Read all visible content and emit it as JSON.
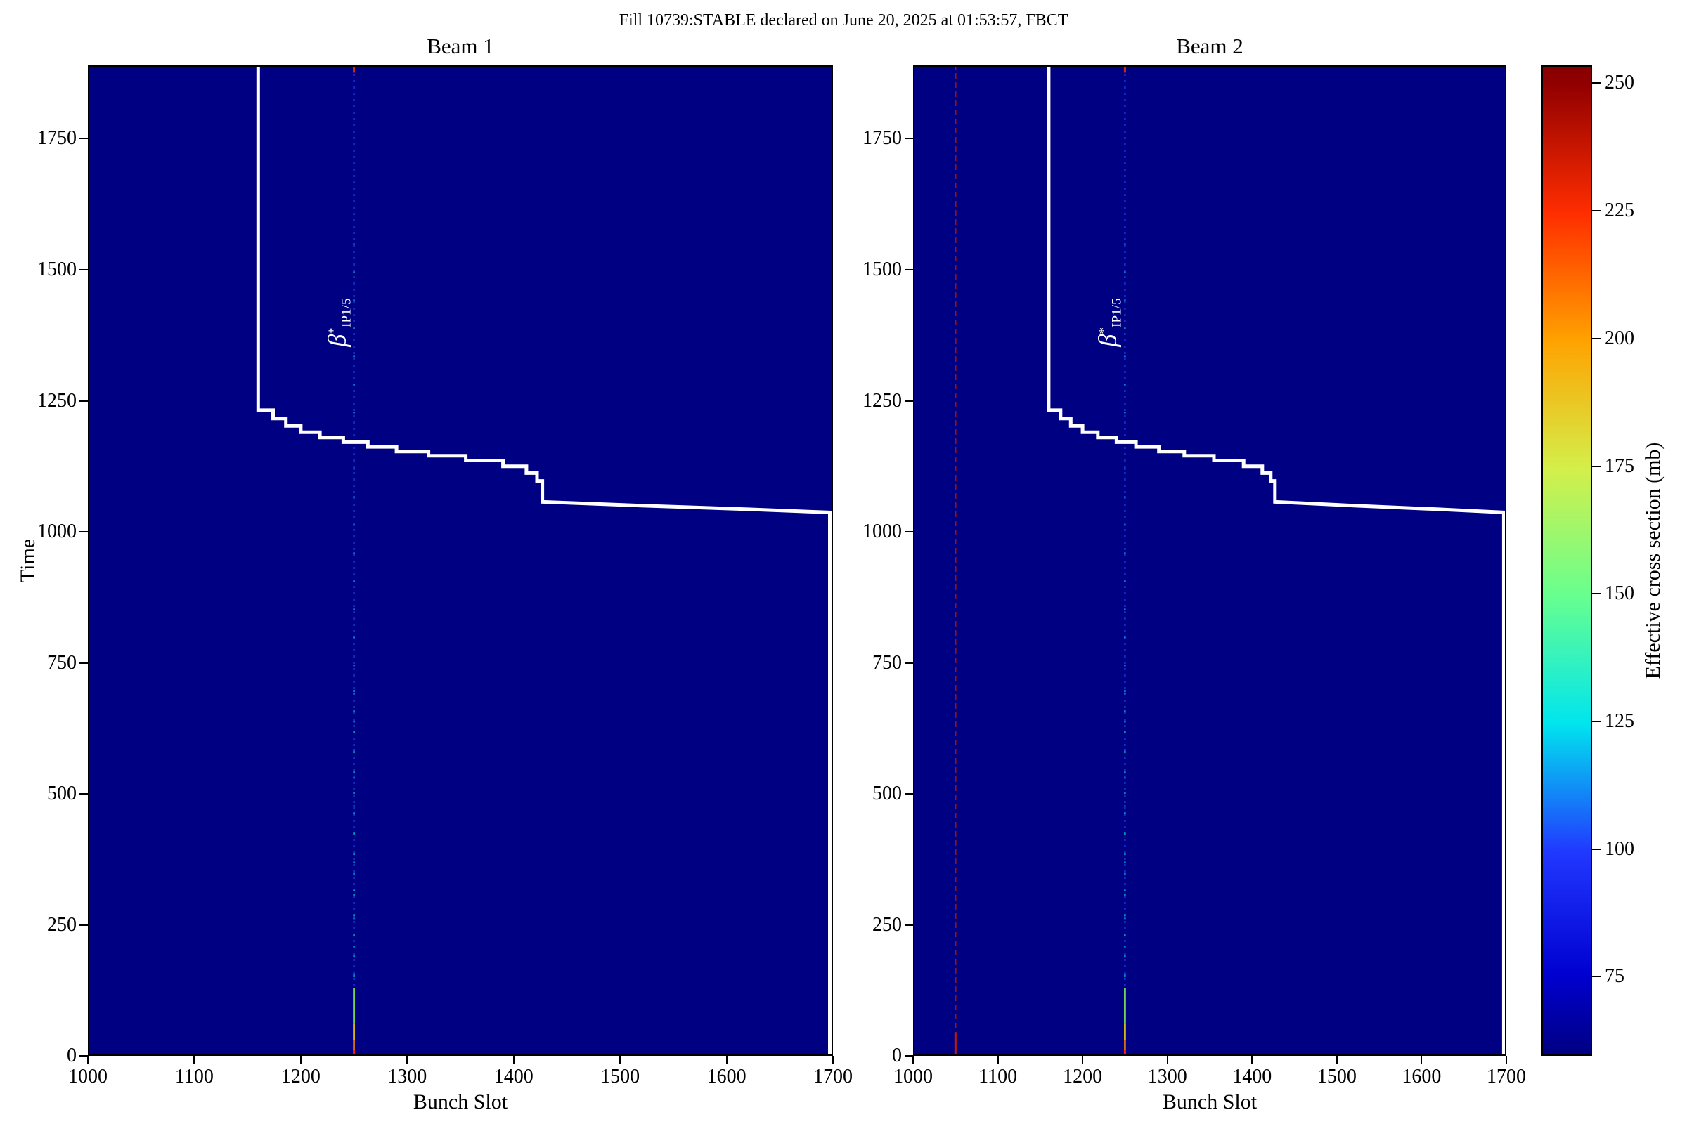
{
  "chart_data": {
    "type": "heatmap",
    "suptitle": "Fill 10739:STABLE declared on June 20, 2025 at 01:53:57, FBCT",
    "xlabel": "Bunch Slot",
    "ylabel": "Time",
    "x_range": [
      1000,
      1700
    ],
    "y_range": [
      0,
      1890
    ],
    "x_ticks": [
      1000,
      1100,
      1200,
      1300,
      1400,
      1500,
      1600,
      1700
    ],
    "y_ticks": [
      0,
      250,
      500,
      750,
      1000,
      1250,
      1500,
      1750
    ],
    "background_value_color": "#000082",
    "grid": false,
    "beams": [
      {
        "title": "Beam 1",
        "columns": [
          {
            "slot": 1250,
            "style": "colliding"
          }
        ]
      },
      {
        "title": "Beam 2",
        "columns": [
          {
            "slot": 1050,
            "style": "noncolliding"
          },
          {
            "slot": 1250,
            "style": "colliding"
          }
        ]
      }
    ],
    "annotation": {
      "base": "β",
      "sup": "*",
      "sub": "IP1/5",
      "slot": 1250,
      "time_center": 1400,
      "color": "#ffffff"
    },
    "boundary_line": {
      "color": "#ffffff",
      "width": 5,
      "points": [
        [
          1160,
          1890
        ],
        [
          1160,
          1232
        ],
        [
          1174,
          1232
        ],
        [
          1174,
          1216
        ],
        [
          1186,
          1216
        ],
        [
          1186,
          1202
        ],
        [
          1200,
          1202
        ],
        [
          1200,
          1190
        ],
        [
          1218,
          1190
        ],
        [
          1218,
          1180
        ],
        [
          1240,
          1180
        ],
        [
          1240,
          1171
        ],
        [
          1263,
          1171
        ],
        [
          1263,
          1162
        ],
        [
          1290,
          1162
        ],
        [
          1290,
          1153
        ],
        [
          1320,
          1153
        ],
        [
          1320,
          1145
        ],
        [
          1355,
          1145
        ],
        [
          1355,
          1136
        ],
        [
          1390,
          1136
        ],
        [
          1390,
          1125
        ],
        [
          1412,
          1125
        ],
        [
          1412,
          1112
        ],
        [
          1422,
          1112
        ],
        [
          1422,
          1097
        ],
        [
          1427,
          1097
        ],
        [
          1427,
          1057
        ],
        [
          1520,
          1050
        ],
        [
          1620,
          1043
        ],
        [
          1697,
          1037
        ],
        [
          1697,
          0
        ]
      ]
    },
    "column_styles": {
      "colliding": [
        {
          "t0": 1876,
          "t1": 1890,
          "color": "#d42b00",
          "width": 3
        },
        {
          "t0": 0,
          "t1": 1876,
          "color": "#2747ff",
          "width": 2,
          "dash": "3,6"
        },
        {
          "t0": 100,
          "t1": 1600,
          "color": "#00d9ff",
          "width": 2,
          "dash": "2,38"
        },
        {
          "t0": 150,
          "t1": 700,
          "color": "#00e9d2",
          "width": 2,
          "dash": "3,26"
        },
        {
          "t0": 62,
          "t1": 130,
          "color": "#8cff4a",
          "width": 2.5
        },
        {
          "t0": 30,
          "t1": 62,
          "color": "#ffdf00",
          "width": 2.5
        },
        {
          "t0": 12,
          "t1": 30,
          "color": "#ff8400",
          "width": 2.5
        },
        {
          "t0": 0,
          "t1": 12,
          "color": "#ff1c00",
          "width": 3
        }
      ],
      "noncolliding": [
        {
          "t0": 0,
          "t1": 1890,
          "color": "#a50f00",
          "width": 2.5,
          "dash": "8,5"
        },
        {
          "t0": 0,
          "t1": 45,
          "color": "#c81800",
          "width": 3
        }
      ]
    },
    "colorbar": {
      "label": "Effective cross section (mb)",
      "ticks": [
        75,
        100,
        125,
        150,
        175,
        200,
        225,
        250
      ],
      "vmin": 59.5,
      "vmax": 253.5,
      "colormap": "jet"
    }
  }
}
